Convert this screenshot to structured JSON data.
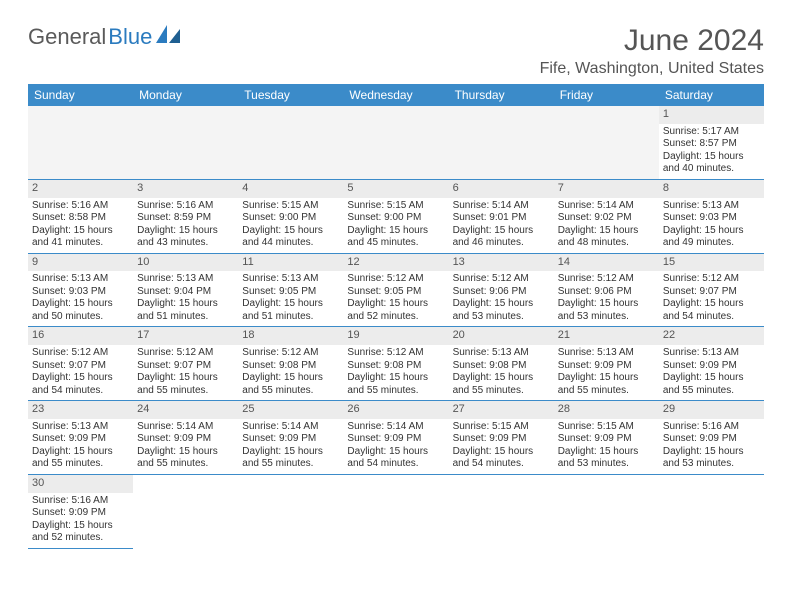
{
  "logo": {
    "text1": "General",
    "text2": "Blue"
  },
  "title": "June 2024",
  "location": "Fife, Washington, United States",
  "columns": [
    "Sunday",
    "Monday",
    "Tuesday",
    "Wednesday",
    "Thursday",
    "Friday",
    "Saturday"
  ],
  "colors": {
    "header_bg": "#3b8bc9",
    "header_text": "#ffffff",
    "daynum_bg": "#ececec",
    "border": "#3b8bc9",
    "logo_gray": "#5a5a5a",
    "logo_blue": "#2b7bbf"
  },
  "weeks": [
    [
      null,
      null,
      null,
      null,
      null,
      null,
      {
        "num": "1",
        "sunrise": "Sunrise: 5:17 AM",
        "sunset": "Sunset: 8:57 PM",
        "daylight": "Daylight: 15 hours and 40 minutes."
      }
    ],
    [
      {
        "num": "2",
        "sunrise": "Sunrise: 5:16 AM",
        "sunset": "Sunset: 8:58 PM",
        "daylight": "Daylight: 15 hours and 41 minutes."
      },
      {
        "num": "3",
        "sunrise": "Sunrise: 5:16 AM",
        "sunset": "Sunset: 8:59 PM",
        "daylight": "Daylight: 15 hours and 43 minutes."
      },
      {
        "num": "4",
        "sunrise": "Sunrise: 5:15 AM",
        "sunset": "Sunset: 9:00 PM",
        "daylight": "Daylight: 15 hours and 44 minutes."
      },
      {
        "num": "5",
        "sunrise": "Sunrise: 5:15 AM",
        "sunset": "Sunset: 9:00 PM",
        "daylight": "Daylight: 15 hours and 45 minutes."
      },
      {
        "num": "6",
        "sunrise": "Sunrise: 5:14 AM",
        "sunset": "Sunset: 9:01 PM",
        "daylight": "Daylight: 15 hours and 46 minutes."
      },
      {
        "num": "7",
        "sunrise": "Sunrise: 5:14 AM",
        "sunset": "Sunset: 9:02 PM",
        "daylight": "Daylight: 15 hours and 48 minutes."
      },
      {
        "num": "8",
        "sunrise": "Sunrise: 5:13 AM",
        "sunset": "Sunset: 9:03 PM",
        "daylight": "Daylight: 15 hours and 49 minutes."
      }
    ],
    [
      {
        "num": "9",
        "sunrise": "Sunrise: 5:13 AM",
        "sunset": "Sunset: 9:03 PM",
        "daylight": "Daylight: 15 hours and 50 minutes."
      },
      {
        "num": "10",
        "sunrise": "Sunrise: 5:13 AM",
        "sunset": "Sunset: 9:04 PM",
        "daylight": "Daylight: 15 hours and 51 minutes."
      },
      {
        "num": "11",
        "sunrise": "Sunrise: 5:13 AM",
        "sunset": "Sunset: 9:05 PM",
        "daylight": "Daylight: 15 hours and 51 minutes."
      },
      {
        "num": "12",
        "sunrise": "Sunrise: 5:12 AM",
        "sunset": "Sunset: 9:05 PM",
        "daylight": "Daylight: 15 hours and 52 minutes."
      },
      {
        "num": "13",
        "sunrise": "Sunrise: 5:12 AM",
        "sunset": "Sunset: 9:06 PM",
        "daylight": "Daylight: 15 hours and 53 minutes."
      },
      {
        "num": "14",
        "sunrise": "Sunrise: 5:12 AM",
        "sunset": "Sunset: 9:06 PM",
        "daylight": "Daylight: 15 hours and 53 minutes."
      },
      {
        "num": "15",
        "sunrise": "Sunrise: 5:12 AM",
        "sunset": "Sunset: 9:07 PM",
        "daylight": "Daylight: 15 hours and 54 minutes."
      }
    ],
    [
      {
        "num": "16",
        "sunrise": "Sunrise: 5:12 AM",
        "sunset": "Sunset: 9:07 PM",
        "daylight": "Daylight: 15 hours and 54 minutes."
      },
      {
        "num": "17",
        "sunrise": "Sunrise: 5:12 AM",
        "sunset": "Sunset: 9:07 PM",
        "daylight": "Daylight: 15 hours and 55 minutes."
      },
      {
        "num": "18",
        "sunrise": "Sunrise: 5:12 AM",
        "sunset": "Sunset: 9:08 PM",
        "daylight": "Daylight: 15 hours and 55 minutes."
      },
      {
        "num": "19",
        "sunrise": "Sunrise: 5:12 AM",
        "sunset": "Sunset: 9:08 PM",
        "daylight": "Daylight: 15 hours and 55 minutes."
      },
      {
        "num": "20",
        "sunrise": "Sunrise: 5:13 AM",
        "sunset": "Sunset: 9:08 PM",
        "daylight": "Daylight: 15 hours and 55 minutes."
      },
      {
        "num": "21",
        "sunrise": "Sunrise: 5:13 AM",
        "sunset": "Sunset: 9:09 PM",
        "daylight": "Daylight: 15 hours and 55 minutes."
      },
      {
        "num": "22",
        "sunrise": "Sunrise: 5:13 AM",
        "sunset": "Sunset: 9:09 PM",
        "daylight": "Daylight: 15 hours and 55 minutes."
      }
    ],
    [
      {
        "num": "23",
        "sunrise": "Sunrise: 5:13 AM",
        "sunset": "Sunset: 9:09 PM",
        "daylight": "Daylight: 15 hours and 55 minutes."
      },
      {
        "num": "24",
        "sunrise": "Sunrise: 5:14 AM",
        "sunset": "Sunset: 9:09 PM",
        "daylight": "Daylight: 15 hours and 55 minutes."
      },
      {
        "num": "25",
        "sunrise": "Sunrise: 5:14 AM",
        "sunset": "Sunset: 9:09 PM",
        "daylight": "Daylight: 15 hours and 55 minutes."
      },
      {
        "num": "26",
        "sunrise": "Sunrise: 5:14 AM",
        "sunset": "Sunset: 9:09 PM",
        "daylight": "Daylight: 15 hours and 54 minutes."
      },
      {
        "num": "27",
        "sunrise": "Sunrise: 5:15 AM",
        "sunset": "Sunset: 9:09 PM",
        "daylight": "Daylight: 15 hours and 54 minutes."
      },
      {
        "num": "28",
        "sunrise": "Sunrise: 5:15 AM",
        "sunset": "Sunset: 9:09 PM",
        "daylight": "Daylight: 15 hours and 53 minutes."
      },
      {
        "num": "29",
        "sunrise": "Sunrise: 5:16 AM",
        "sunset": "Sunset: 9:09 PM",
        "daylight": "Daylight: 15 hours and 53 minutes."
      }
    ],
    [
      {
        "num": "30",
        "sunrise": "Sunrise: 5:16 AM",
        "sunset": "Sunset: 9:09 PM",
        "daylight": "Daylight: 15 hours and 52 minutes."
      },
      null,
      null,
      null,
      null,
      null,
      null
    ]
  ]
}
